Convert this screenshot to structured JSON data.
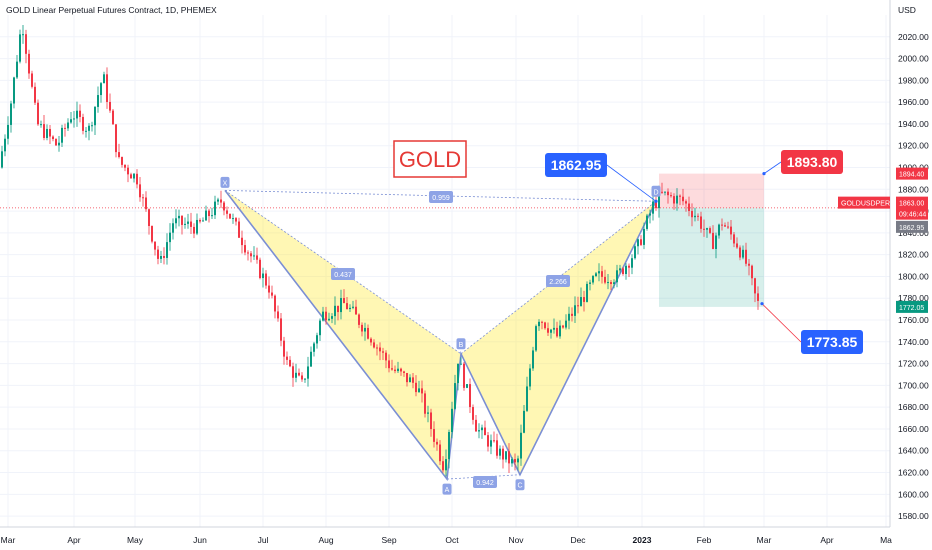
{
  "chart_data": {
    "type": "candlestick",
    "title": "GOLD Linear Perpetual Futures Contract, 1D, PHEMEX",
    "currency": "USD",
    "symbol_badge": "GOLDUSDPERP",
    "ylim": [
      1570,
      2040
    ],
    "y_ticks": [
      1580,
      1600,
      1620,
      1640,
      1660,
      1680,
      1700,
      1720,
      1740,
      1760,
      1780,
      1800,
      1820,
      1840,
      1860,
      1880,
      1900,
      1920,
      1940,
      1960,
      1980,
      2000,
      2020
    ],
    "x_ticks": [
      "Mar",
      "Apr",
      "May",
      "Jun",
      "Jul",
      "Aug",
      "Sep",
      "Oct",
      "Nov",
      "Dec",
      "2023",
      "Feb",
      "Mar",
      "Apr",
      "Ma"
    ],
    "annotation_text": "GOLD",
    "price_labels": {
      "current_price": "1863.00",
      "countdown": "09:46:44",
      "target_label": "1894.40",
      "entry_label": "1862.95",
      "last_label": "1772.05"
    },
    "pattern": {
      "points": [
        {
          "label": "X",
          "date": "Jun 2022",
          "price": 1879
        },
        {
          "label": "A",
          "date": "Sep 2022",
          "price": 1614
        },
        {
          "label": "B",
          "date": "Oct 2022",
          "price": 1729
        },
        {
          "label": "C",
          "date": "Nov 2022",
          "price": 1618
        },
        {
          "label": "D",
          "date": "Jan 2023",
          "price": 1869
        }
      ],
      "ratios": [
        "0.959",
        "0.437",
        "0.942",
        "2.266"
      ]
    },
    "callouts": [
      "1862.95",
      "1893.80",
      "1773.85"
    ],
    "position": {
      "entry": 1862.95,
      "target": 1894.4,
      "stop_area_low": 1772.05
    }
  }
}
